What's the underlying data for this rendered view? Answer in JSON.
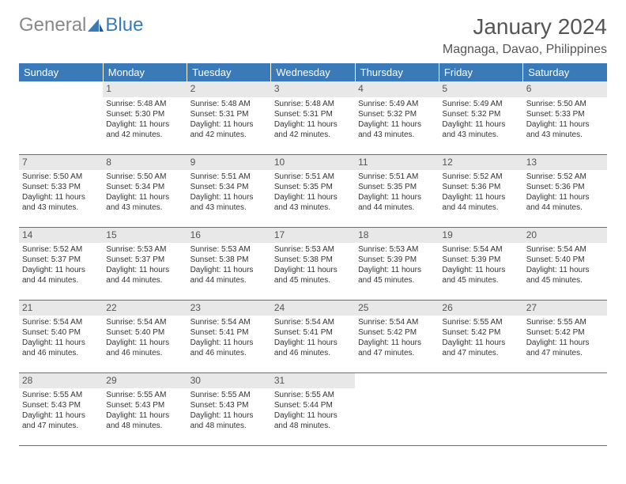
{
  "logo": {
    "general": "General",
    "blue": "Blue"
  },
  "title": "January 2024",
  "location": "Magnaga, Davao, Philippines",
  "weekdays": [
    "Sunday",
    "Monday",
    "Tuesday",
    "Wednesday",
    "Thursday",
    "Friday",
    "Saturday"
  ],
  "colors": {
    "header_bg": "#3b7ab8",
    "header_text": "#ffffff",
    "daynum_bg": "#e8e8e8",
    "text": "#333333",
    "logo_blue": "#3b7ab8",
    "logo_gray": "#888888"
  },
  "weeks": [
    [
      {
        "num": "",
        "sunrise": "",
        "sunset": "",
        "daylight": ""
      },
      {
        "num": "1",
        "sunrise": "Sunrise: 5:48 AM",
        "sunset": "Sunset: 5:30 PM",
        "daylight": "Daylight: 11 hours and 42 minutes."
      },
      {
        "num": "2",
        "sunrise": "Sunrise: 5:48 AM",
        "sunset": "Sunset: 5:31 PM",
        "daylight": "Daylight: 11 hours and 42 minutes."
      },
      {
        "num": "3",
        "sunrise": "Sunrise: 5:48 AM",
        "sunset": "Sunset: 5:31 PM",
        "daylight": "Daylight: 11 hours and 42 minutes."
      },
      {
        "num": "4",
        "sunrise": "Sunrise: 5:49 AM",
        "sunset": "Sunset: 5:32 PM",
        "daylight": "Daylight: 11 hours and 43 minutes."
      },
      {
        "num": "5",
        "sunrise": "Sunrise: 5:49 AM",
        "sunset": "Sunset: 5:32 PM",
        "daylight": "Daylight: 11 hours and 43 minutes."
      },
      {
        "num": "6",
        "sunrise": "Sunrise: 5:50 AM",
        "sunset": "Sunset: 5:33 PM",
        "daylight": "Daylight: 11 hours and 43 minutes."
      }
    ],
    [
      {
        "num": "7",
        "sunrise": "Sunrise: 5:50 AM",
        "sunset": "Sunset: 5:33 PM",
        "daylight": "Daylight: 11 hours and 43 minutes."
      },
      {
        "num": "8",
        "sunrise": "Sunrise: 5:50 AM",
        "sunset": "Sunset: 5:34 PM",
        "daylight": "Daylight: 11 hours and 43 minutes."
      },
      {
        "num": "9",
        "sunrise": "Sunrise: 5:51 AM",
        "sunset": "Sunset: 5:34 PM",
        "daylight": "Daylight: 11 hours and 43 minutes."
      },
      {
        "num": "10",
        "sunrise": "Sunrise: 5:51 AM",
        "sunset": "Sunset: 5:35 PM",
        "daylight": "Daylight: 11 hours and 43 minutes."
      },
      {
        "num": "11",
        "sunrise": "Sunrise: 5:51 AM",
        "sunset": "Sunset: 5:35 PM",
        "daylight": "Daylight: 11 hours and 44 minutes."
      },
      {
        "num": "12",
        "sunrise": "Sunrise: 5:52 AM",
        "sunset": "Sunset: 5:36 PM",
        "daylight": "Daylight: 11 hours and 44 minutes."
      },
      {
        "num": "13",
        "sunrise": "Sunrise: 5:52 AM",
        "sunset": "Sunset: 5:36 PM",
        "daylight": "Daylight: 11 hours and 44 minutes."
      }
    ],
    [
      {
        "num": "14",
        "sunrise": "Sunrise: 5:52 AM",
        "sunset": "Sunset: 5:37 PM",
        "daylight": "Daylight: 11 hours and 44 minutes."
      },
      {
        "num": "15",
        "sunrise": "Sunrise: 5:53 AM",
        "sunset": "Sunset: 5:37 PM",
        "daylight": "Daylight: 11 hours and 44 minutes."
      },
      {
        "num": "16",
        "sunrise": "Sunrise: 5:53 AM",
        "sunset": "Sunset: 5:38 PM",
        "daylight": "Daylight: 11 hours and 44 minutes."
      },
      {
        "num": "17",
        "sunrise": "Sunrise: 5:53 AM",
        "sunset": "Sunset: 5:38 PM",
        "daylight": "Daylight: 11 hours and 45 minutes."
      },
      {
        "num": "18",
        "sunrise": "Sunrise: 5:53 AM",
        "sunset": "Sunset: 5:39 PM",
        "daylight": "Daylight: 11 hours and 45 minutes."
      },
      {
        "num": "19",
        "sunrise": "Sunrise: 5:54 AM",
        "sunset": "Sunset: 5:39 PM",
        "daylight": "Daylight: 11 hours and 45 minutes."
      },
      {
        "num": "20",
        "sunrise": "Sunrise: 5:54 AM",
        "sunset": "Sunset: 5:40 PM",
        "daylight": "Daylight: 11 hours and 45 minutes."
      }
    ],
    [
      {
        "num": "21",
        "sunrise": "Sunrise: 5:54 AM",
        "sunset": "Sunset: 5:40 PM",
        "daylight": "Daylight: 11 hours and 46 minutes."
      },
      {
        "num": "22",
        "sunrise": "Sunrise: 5:54 AM",
        "sunset": "Sunset: 5:40 PM",
        "daylight": "Daylight: 11 hours and 46 minutes."
      },
      {
        "num": "23",
        "sunrise": "Sunrise: 5:54 AM",
        "sunset": "Sunset: 5:41 PM",
        "daylight": "Daylight: 11 hours and 46 minutes."
      },
      {
        "num": "24",
        "sunrise": "Sunrise: 5:54 AM",
        "sunset": "Sunset: 5:41 PM",
        "daylight": "Daylight: 11 hours and 46 minutes."
      },
      {
        "num": "25",
        "sunrise": "Sunrise: 5:54 AM",
        "sunset": "Sunset: 5:42 PM",
        "daylight": "Daylight: 11 hours and 47 minutes."
      },
      {
        "num": "26",
        "sunrise": "Sunrise: 5:55 AM",
        "sunset": "Sunset: 5:42 PM",
        "daylight": "Daylight: 11 hours and 47 minutes."
      },
      {
        "num": "27",
        "sunrise": "Sunrise: 5:55 AM",
        "sunset": "Sunset: 5:42 PM",
        "daylight": "Daylight: 11 hours and 47 minutes."
      }
    ],
    [
      {
        "num": "28",
        "sunrise": "Sunrise: 5:55 AM",
        "sunset": "Sunset: 5:43 PM",
        "daylight": "Daylight: 11 hours and 47 minutes."
      },
      {
        "num": "29",
        "sunrise": "Sunrise: 5:55 AM",
        "sunset": "Sunset: 5:43 PM",
        "daylight": "Daylight: 11 hours and 48 minutes."
      },
      {
        "num": "30",
        "sunrise": "Sunrise: 5:55 AM",
        "sunset": "Sunset: 5:43 PM",
        "daylight": "Daylight: 11 hours and 48 minutes."
      },
      {
        "num": "31",
        "sunrise": "Sunrise: 5:55 AM",
        "sunset": "Sunset: 5:44 PM",
        "daylight": "Daylight: 11 hours and 48 minutes."
      },
      {
        "num": "",
        "sunrise": "",
        "sunset": "",
        "daylight": ""
      },
      {
        "num": "",
        "sunrise": "",
        "sunset": "",
        "daylight": ""
      },
      {
        "num": "",
        "sunrise": "",
        "sunset": "",
        "daylight": ""
      }
    ]
  ]
}
